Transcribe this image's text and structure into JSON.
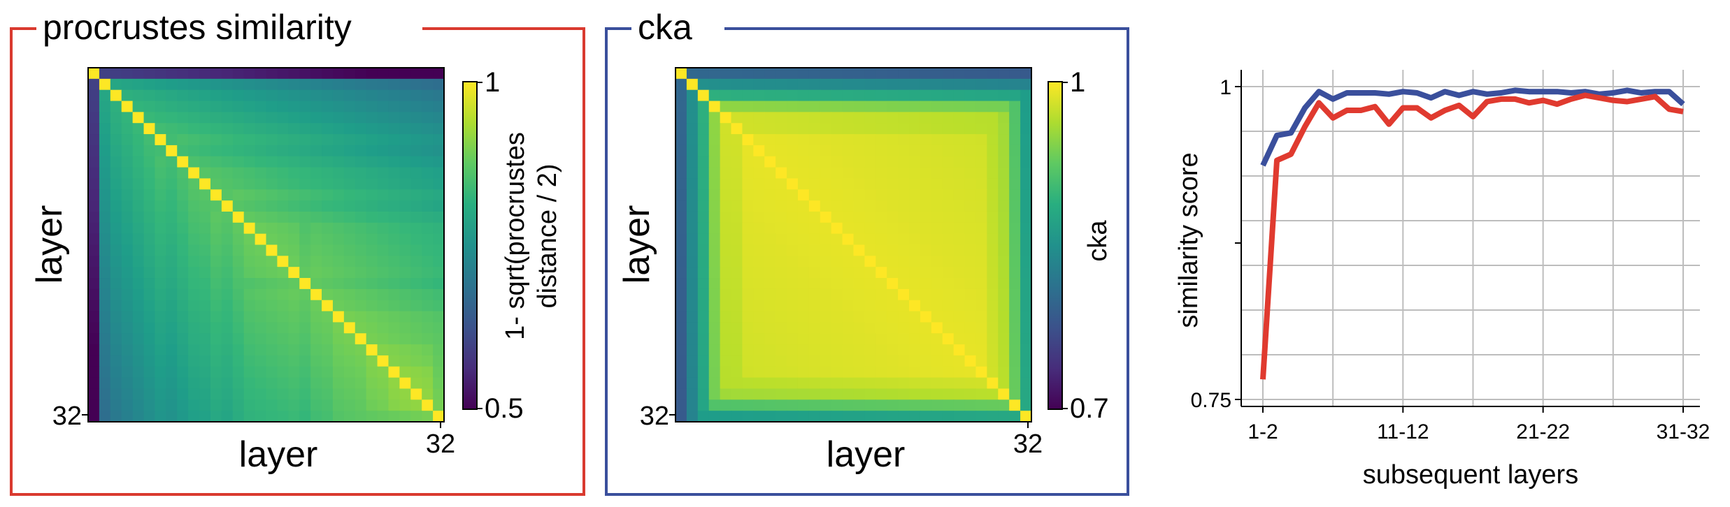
{
  "panels": {
    "procrustes": {
      "title": "procrustes similarity",
      "frame_color": "#d93a2f",
      "ylabel": "layer",
      "xlabel": "layer",
      "tick_label": "32",
      "colorbar": {
        "label_line1": "1- sqrt(procrustes",
        "label_line2": "distance / 2)",
        "max_label": "1",
        "min_label": "0.5"
      }
    },
    "cka": {
      "title": "cka",
      "frame_color": "#3a4f9c",
      "ylabel": "layer",
      "xlabel": "layer",
      "tick_label": "32",
      "colorbar": {
        "label_line1": "cka",
        "max_label": "1",
        "min_label": "0.7"
      }
    }
  },
  "chart_data": [
    {
      "type": "heatmap",
      "title": "procrustes similarity",
      "xlabel": "layer",
      "ylabel": "layer",
      "size": 32,
      "colorbar_label": "1- sqrt(procrustes distance / 2)",
      "value_range": [
        0.5,
        1
      ],
      "colormap": "viridis",
      "layer_means": [
        0.6,
        0.8,
        0.82,
        0.83,
        0.84,
        0.85,
        0.86,
        0.85,
        0.86,
        0.87,
        0.87,
        0.88,
        0.87,
        0.88,
        0.89,
        0.89,
        0.89,
        0.89,
        0.89,
        0.88,
        0.89,
        0.89,
        0.9,
        0.9,
        0.9,
        0.91,
        0.91,
        0.92,
        0.92,
        0.92,
        0.93,
        0.9
      ],
      "decay_per_layer": 0.004,
      "diagonal": 1.0
    },
    {
      "type": "heatmap",
      "title": "cka",
      "xlabel": "layer",
      "ylabel": "layer",
      "size": 32,
      "colorbar_label": "cka",
      "value_range": [
        0.7,
        1
      ],
      "colormap": "viridis",
      "layer_means": [
        0.8,
        0.85,
        0.89,
        0.95,
        0.98,
        0.98,
        0.99,
        0.99,
        0.99,
        0.99,
        0.99,
        0.99,
        0.99,
        0.99,
        0.99,
        0.99,
        0.99,
        0.99,
        0.99,
        0.99,
        0.99,
        0.99,
        0.99,
        0.99,
        0.99,
        0.99,
        0.99,
        0.99,
        0.98,
        0.97,
        0.93,
        0.88
      ],
      "decay_per_layer": 0.0005,
      "diagonal": 1.0
    },
    {
      "type": "line",
      "xlabel": "subsequent layers",
      "ylabel": "similarity score",
      "x_tick_labels": [
        "1-2",
        "11-12",
        "21-22",
        "31-32"
      ],
      "x_tick_positions": [
        1,
        11,
        21,
        31
      ],
      "y_tick_labels": [
        "0.75",
        "1"
      ],
      "ylim": [
        0.75,
        1.0
      ],
      "xlim": [
        1,
        31
      ],
      "grid": true,
      "series": [
        {
          "color": "#3a4f9c",
          "x": [
            1,
            2,
            3,
            4,
            5,
            6,
            7,
            8,
            9,
            10,
            11,
            12,
            13,
            14,
            15,
            16,
            17,
            18,
            19,
            20,
            21,
            22,
            23,
            24,
            25,
            26,
            27,
            28,
            29,
            30,
            31
          ],
          "values": [
            0.937,
            0.961,
            0.963,
            0.983,
            0.996,
            0.99,
            0.995,
            0.995,
            0.995,
            0.994,
            0.996,
            0.995,
            0.991,
            0.996,
            0.993,
            0.996,
            0.994,
            0.995,
            0.997,
            0.996,
            0.996,
            0.996,
            0.995,
            0.996,
            0.994,
            0.995,
            0.997,
            0.995,
            0.996,
            0.996,
            0.986
          ]
        },
        {
          "color": "#e03a2f",
          "x": [
            1,
            2,
            3,
            4,
            5,
            6,
            7,
            8,
            9,
            10,
            11,
            12,
            13,
            14,
            15,
            16,
            17,
            18,
            19,
            20,
            21,
            22,
            23,
            24,
            25,
            26,
            27,
            28,
            29,
            30,
            31
          ],
          "values": [
            0.766,
            0.941,
            0.946,
            0.968,
            0.987,
            0.975,
            0.981,
            0.981,
            0.984,
            0.97,
            0.983,
            0.983,
            0.975,
            0.981,
            0.985,
            0.976,
            0.988,
            0.99,
            0.99,
            0.987,
            0.989,
            0.986,
            0.99,
            0.993,
            0.991,
            0.989,
            0.988,
            0.99,
            0.992,
            0.982,
            0.98
          ]
        }
      ]
    }
  ]
}
